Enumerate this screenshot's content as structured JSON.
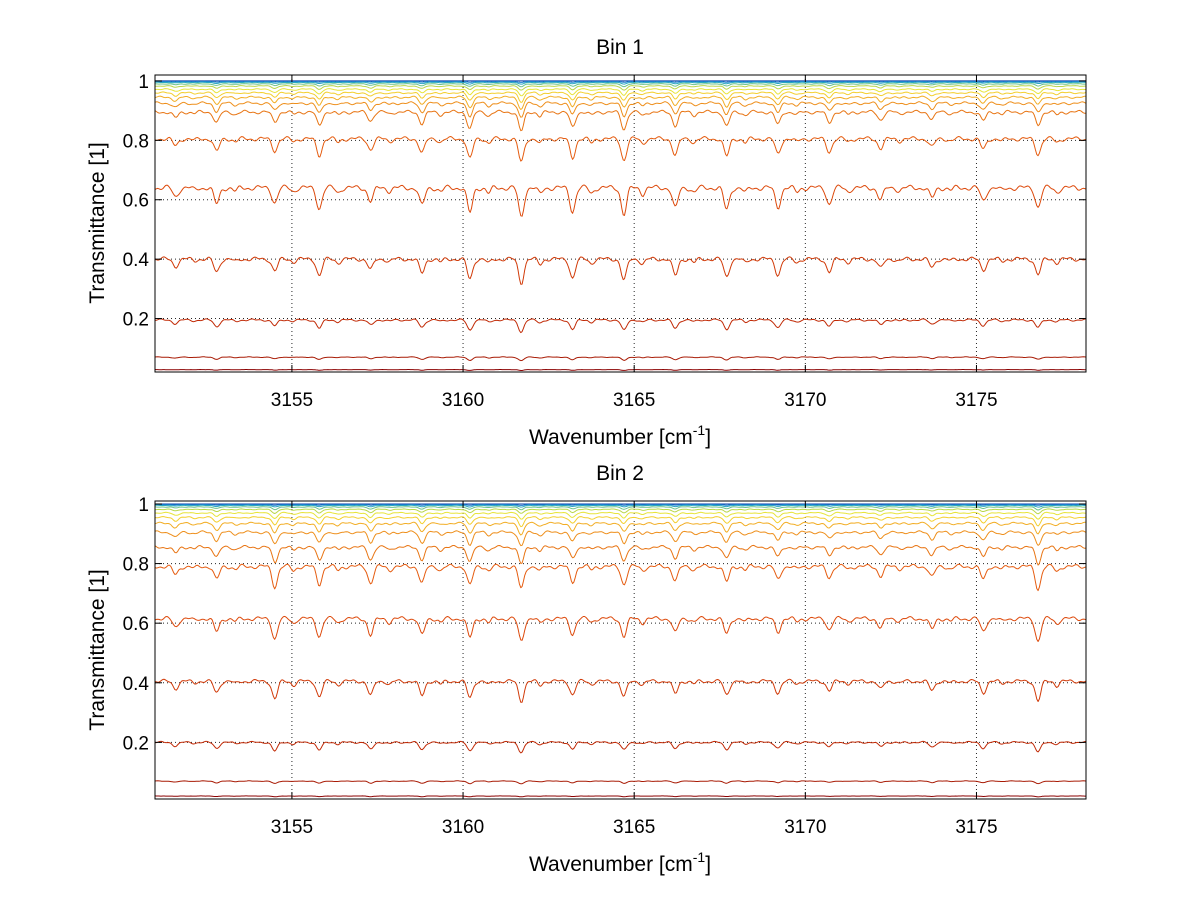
{
  "chart_data": [
    {
      "type": "line",
      "title": "Bin 1",
      "xlabel": "Wavenumber [cm",
      "xlabel_sup": "-1",
      "xlabel_tail": "]",
      "ylabel": "Transmittance [1]",
      "xlim": [
        3151.0,
        3178.2
      ],
      "ylim": [
        0.02,
        1.02
      ],
      "xticks": [
        3155,
        3160,
        3165,
        3170,
        3175
      ],
      "xtick_labels": [
        "3155",
        "3160",
        "3165",
        "3170",
        "3175"
      ],
      "yticks": [
        0.2,
        0.4,
        0.6,
        0.8,
        1
      ],
      "ytick_labels": [
        "0.2",
        "0.4",
        "0.6",
        "0.8",
        "1"
      ],
      "grid": true,
      "absorption_lines": [
        {
          "x": 3151.6,
          "rel": 0.3
        },
        {
          "x": 3152.8,
          "rel": 0.55
        },
        {
          "x": 3154.5,
          "rel": 0.5
        },
        {
          "x": 3155.8,
          "rel": 0.7
        },
        {
          "x": 3157.3,
          "rel": 0.45
        },
        {
          "x": 3158.8,
          "rel": 0.6
        },
        {
          "x": 3160.2,
          "rel": 0.85
        },
        {
          "x": 3161.7,
          "rel": 1.0
        },
        {
          "x": 3163.2,
          "rel": 0.8
        },
        {
          "x": 3164.7,
          "rel": 0.9
        },
        {
          "x": 3166.2,
          "rel": 0.7
        },
        {
          "x": 3167.7,
          "rel": 0.75
        },
        {
          "x": 3169.2,
          "rel": 0.65
        },
        {
          "x": 3170.7,
          "rel": 0.55
        },
        {
          "x": 3172.2,
          "rel": 0.4
        },
        {
          "x": 3173.7,
          "rel": 0.35
        },
        {
          "x": 3175.2,
          "rel": 0.45
        },
        {
          "x": 3176.8,
          "rel": 0.65
        }
      ],
      "series": [
        {
          "baseline": 1.0,
          "depth": 0.0,
          "color": "#0a3fa8"
        },
        {
          "baseline": 0.998,
          "depth": 0.003,
          "color": "#1a7fd0"
        },
        {
          "baseline": 0.995,
          "depth": 0.006,
          "color": "#2aa8c0"
        },
        {
          "baseline": 0.99,
          "depth": 0.01,
          "color": "#6cc38a"
        },
        {
          "baseline": 0.983,
          "depth": 0.015,
          "color": "#b9d64a"
        },
        {
          "baseline": 0.972,
          "depth": 0.022,
          "color": "#e7e43a"
        },
        {
          "baseline": 0.96,
          "depth": 0.03,
          "color": "#f3cf2e"
        },
        {
          "baseline": 0.945,
          "depth": 0.04,
          "color": "#f2ad24"
        },
        {
          "baseline": 0.925,
          "depth": 0.05,
          "color": "#ee8f1c"
        },
        {
          "baseline": 0.895,
          "depth": 0.065,
          "color": "#e87514"
        },
        {
          "baseline": 0.805,
          "depth": 0.08,
          "color": "#e55c10"
        },
        {
          "baseline": 0.64,
          "depth": 0.1,
          "color": "#dd4a0c"
        },
        {
          "baseline": 0.4,
          "depth": 0.08,
          "color": "#d13a08"
        },
        {
          "baseline": 0.195,
          "depth": 0.04,
          "color": "#c12a06"
        },
        {
          "baseline": 0.07,
          "depth": 0.012,
          "color": "#a81a04"
        },
        {
          "baseline": 0.028,
          "depth": 0.003,
          "color": "#8b0000"
        }
      ]
    },
    {
      "type": "line",
      "title": "Bin 2",
      "xlabel": "Wavenumber [cm",
      "xlabel_sup": "-1",
      "xlabel_tail": "]",
      "ylabel": "Transmittance [1]",
      "xlim": [
        3151.0,
        3178.2
      ],
      "ylim": [
        0.01,
        1.01
      ],
      "xticks": [
        3155,
        3160,
        3165,
        3170,
        3175
      ],
      "xtick_labels": [
        "3155",
        "3160",
        "3165",
        "3170",
        "3175"
      ],
      "yticks": [
        0.2,
        0.4,
        0.6,
        0.8,
        1
      ],
      "ytick_labels": [
        "0.2",
        "0.4",
        "0.6",
        "0.8",
        "1"
      ],
      "grid": true,
      "absorption_lines": [
        {
          "x": 3151.6,
          "rel": 0.35
        },
        {
          "x": 3152.8,
          "rel": 0.55
        },
        {
          "x": 3154.5,
          "rel": 0.85
        },
        {
          "x": 3155.8,
          "rel": 0.75
        },
        {
          "x": 3157.3,
          "rel": 0.7
        },
        {
          "x": 3158.8,
          "rel": 0.7
        },
        {
          "x": 3160.2,
          "rel": 0.8
        },
        {
          "x": 3161.7,
          "rel": 0.95
        },
        {
          "x": 3163.2,
          "rel": 0.65
        },
        {
          "x": 3164.7,
          "rel": 0.75
        },
        {
          "x": 3166.2,
          "rel": 0.6
        },
        {
          "x": 3167.7,
          "rel": 0.65
        },
        {
          "x": 3169.2,
          "rel": 0.55
        },
        {
          "x": 3170.7,
          "rel": 0.45
        },
        {
          "x": 3172.2,
          "rel": 0.4
        },
        {
          "x": 3173.7,
          "rel": 0.45
        },
        {
          "x": 3175.2,
          "rel": 0.55
        },
        {
          "x": 3176.8,
          "rel": 0.95
        }
      ],
      "series": [
        {
          "baseline": 1.0,
          "depth": 0.0,
          "color": "#0a3fa8"
        },
        {
          "baseline": 0.998,
          "depth": 0.003,
          "color": "#1a7fd0"
        },
        {
          "baseline": 0.995,
          "depth": 0.006,
          "color": "#2aa8c0"
        },
        {
          "baseline": 0.99,
          "depth": 0.01,
          "color": "#6cc38a"
        },
        {
          "baseline": 0.982,
          "depth": 0.015,
          "color": "#b9d64a"
        },
        {
          "baseline": 0.97,
          "depth": 0.022,
          "color": "#e7e43a"
        },
        {
          "baseline": 0.955,
          "depth": 0.03,
          "color": "#f3cf2e"
        },
        {
          "baseline": 0.935,
          "depth": 0.04,
          "color": "#f2ad24"
        },
        {
          "baseline": 0.905,
          "depth": 0.05,
          "color": "#ee8f1c"
        },
        {
          "baseline": 0.855,
          "depth": 0.06,
          "color": "#e87514"
        },
        {
          "baseline": 0.79,
          "depth": 0.08,
          "color": "#e55c10"
        },
        {
          "baseline": 0.615,
          "depth": 0.08,
          "color": "#dd4a0c"
        },
        {
          "baseline": 0.405,
          "depth": 0.07,
          "color": "#d13a08"
        },
        {
          "baseline": 0.2,
          "depth": 0.035,
          "color": "#c12a06"
        },
        {
          "baseline": 0.07,
          "depth": 0.01,
          "color": "#a81a04"
        },
        {
          "baseline": 0.02,
          "depth": 0.003,
          "color": "#8b0000"
        }
      ]
    }
  ]
}
